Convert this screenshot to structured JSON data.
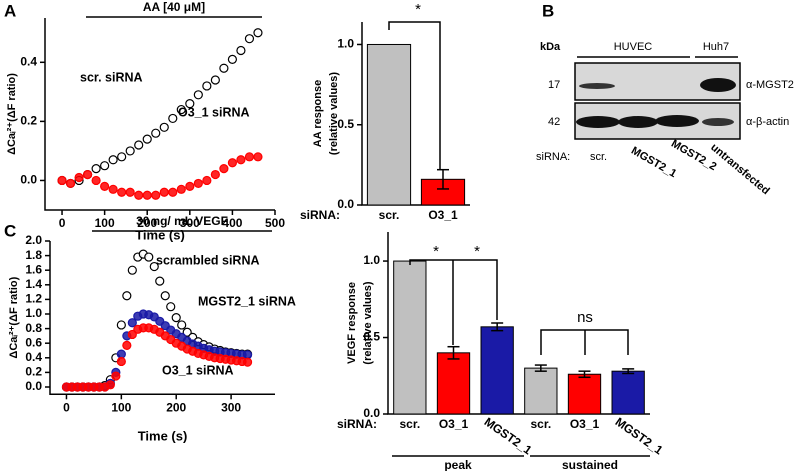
{
  "panel_labels": [
    "A",
    "B",
    "C"
  ],
  "chart_data": [
    {
      "type": "scatter",
      "title": "AA [40 μM]",
      "xlabel": "Time (s)",
      "ylabel": "ΔCaᵢ²⁺(ΔF ratio)",
      "x": [
        0,
        20,
        40,
        60,
        80,
        100,
        120,
        140,
        160,
        180,
        200,
        220,
        240,
        260,
        280,
        300,
        320,
        340,
        360,
        380,
        400,
        420,
        440,
        460
      ],
      "series": [
        {
          "name": "scr. siRNA",
          "color": "#000000",
          "marker": "open",
          "values": [
            0.0,
            -0.01,
            0.0,
            0.02,
            0.04,
            0.05,
            0.07,
            0.08,
            0.1,
            0.12,
            0.14,
            0.16,
            0.18,
            0.21,
            0.24,
            0.26,
            0.29,
            0.32,
            0.34,
            0.38,
            0.41,
            0.44,
            0.48,
            0.5
          ]
        },
        {
          "name": "O3_1 siRNA",
          "color": "#ff0000",
          "marker": "filled",
          "values": [
            0.0,
            -0.01,
            0.01,
            0.02,
            0.0,
            -0.02,
            -0.03,
            -0.04,
            -0.04,
            -0.05,
            -0.05,
            -0.05,
            -0.04,
            -0.04,
            -0.03,
            -0.02,
            -0.01,
            0.0,
            0.02,
            0.04,
            0.06,
            0.07,
            0.08,
            0.08
          ]
        }
      ],
      "xlim": [
        -40,
        500
      ],
      "xticks": [
        0,
        100,
        200,
        300,
        400,
        500
      ],
      "ylim": [
        -0.1,
        0.55
      ],
      "yticks": [
        {
          "value": 0,
          "label": "0.0"
        },
        0.2,
        0.4
      ]
    },
    {
      "type": "bar",
      "ylabel": [
        "AA response",
        "(relative values)"
      ],
      "row_label": "siRNA:",
      "categories": [
        "scr.",
        "O3_1"
      ],
      "values": [
        1,
        0.16
      ],
      "errors": [
        null,
        0.06
      ],
      "colors": [
        "#c0c0c0",
        "#ff0000"
      ],
      "annotations": [
        "*"
      ],
      "ylim": [
        0,
        1.14
      ],
      "yticks": [
        {
          "value": 0,
          "label": "0.0"
        },
        0.5,
        {
          "value": 1,
          "label": "1.0"
        }
      ]
    },
    {
      "type": "scatter",
      "title": "30 ng/ mL VEGF",
      "xlabel": "Time (s)",
      "ylabel": "ΔCaᵢ²⁺(ΔF ratio)",
      "x": [
        0,
        10,
        20,
        30,
        40,
        50,
        60,
        70,
        80,
        90,
        100,
        110,
        120,
        130,
        140,
        150,
        160,
        170,
        180,
        190,
        200,
        210,
        220,
        230,
        240,
        250,
        260,
        270,
        280,
        290,
        300,
        310,
        320,
        330
      ],
      "series": [
        {
          "name": "scrambled siRNA",
          "color": "#000000",
          "marker": "open",
          "values": [
            0,
            0,
            0,
            0,
            0,
            0,
            0,
            0.02,
            0.1,
            0.4,
            0.85,
            1.25,
            1.6,
            1.78,
            1.82,
            1.78,
            1.65,
            1.45,
            1.25,
            1.1,
            0.95,
            0.85,
            0.75,
            0.68,
            0.62,
            0.58,
            0.55,
            0.52,
            0.5,
            0.48,
            0.47,
            0.46,
            0.45,
            0.45
          ]
        },
        {
          "name": "MGST2_1 siRNA",
          "color": "#1a1aa6",
          "marker": "filled",
          "values": [
            0,
            0,
            0,
            0,
            0,
            0,
            0,
            0,
            0.05,
            0.2,
            0.45,
            0.7,
            0.88,
            0.97,
            1.0,
            0.99,
            0.96,
            0.9,
            0.84,
            0.78,
            0.73,
            0.68,
            0.63,
            0.59,
            0.56,
            0.53,
            0.51,
            0.49,
            0.48,
            0.47,
            0.46,
            0.45,
            0.44,
            0.44
          ]
        },
        {
          "name": "O3_1 siRNA",
          "color": "#ff0000",
          "marker": "filled",
          "values": [
            0,
            0,
            0,
            0,
            0,
            0,
            0,
            0,
            0.03,
            0.15,
            0.35,
            0.57,
            0.72,
            0.79,
            0.81,
            0.81,
            0.79,
            0.75,
            0.7,
            0.65,
            0.6,
            0.56,
            0.52,
            0.49,
            0.46,
            0.44,
            0.42,
            0.4,
            0.39,
            0.38,
            0.37,
            0.36,
            0.35,
            0.34
          ]
        }
      ],
      "xlim": [
        -30,
        380
      ],
      "xticks": [
        0,
        100,
        200,
        300
      ],
      "ylim": [
        -0.1,
        2.0
      ],
      "yticks": [
        {
          "value": 0,
          "label": "0.0"
        },
        0.2,
        0.4,
        0.6,
        0.8,
        {
          "value": 1,
          "label": "1.0"
        },
        1.2,
        1.4,
        1.6,
        1.8,
        {
          "value": 2,
          "label": "2.0"
        }
      ]
    },
    {
      "type": "bar",
      "ylabel": [
        "VEGF response",
        "(relative values)"
      ],
      "row_label": "siRNA:",
      "categories": [
        "scr.",
        "O3_1",
        "MGST2_1",
        "scr.",
        "O3_1",
        "MGST2_1"
      ],
      "values": [
        1,
        0.4,
        0.57,
        0.3,
        0.26,
        0.28
      ],
      "errors": [
        null,
        0.04,
        0.025,
        0.02,
        0.02,
        0.015
      ],
      "colors": [
        "#c0c0c0",
        "#ff0000",
        "#1a1aa6",
        "#c0c0c0",
        "#ff0000",
        "#1a1aa6"
      ],
      "groups": [
        "peak",
        "sustained"
      ],
      "annotations": [
        "*",
        "*",
        "ns"
      ],
      "ylim": [
        0,
        1.19
      ],
      "yticks": [
        {
          "value": 0,
          "label": "0.0"
        },
        0.5,
        {
          "value": 1,
          "label": "1.0"
        }
      ]
    }
  ],
  "blot": {
    "size_label": "kDa",
    "groups": [
      "HUVEC",
      "Huh7"
    ],
    "sizes": [
      "17",
      "42"
    ],
    "antibodies": [
      "α-MGST2",
      "α-β-actin"
    ],
    "row_label": "siRNA:",
    "lanes": [
      "scr.",
      "MGST2_1",
      "MGST2_2",
      "untransfected"
    ]
  }
}
